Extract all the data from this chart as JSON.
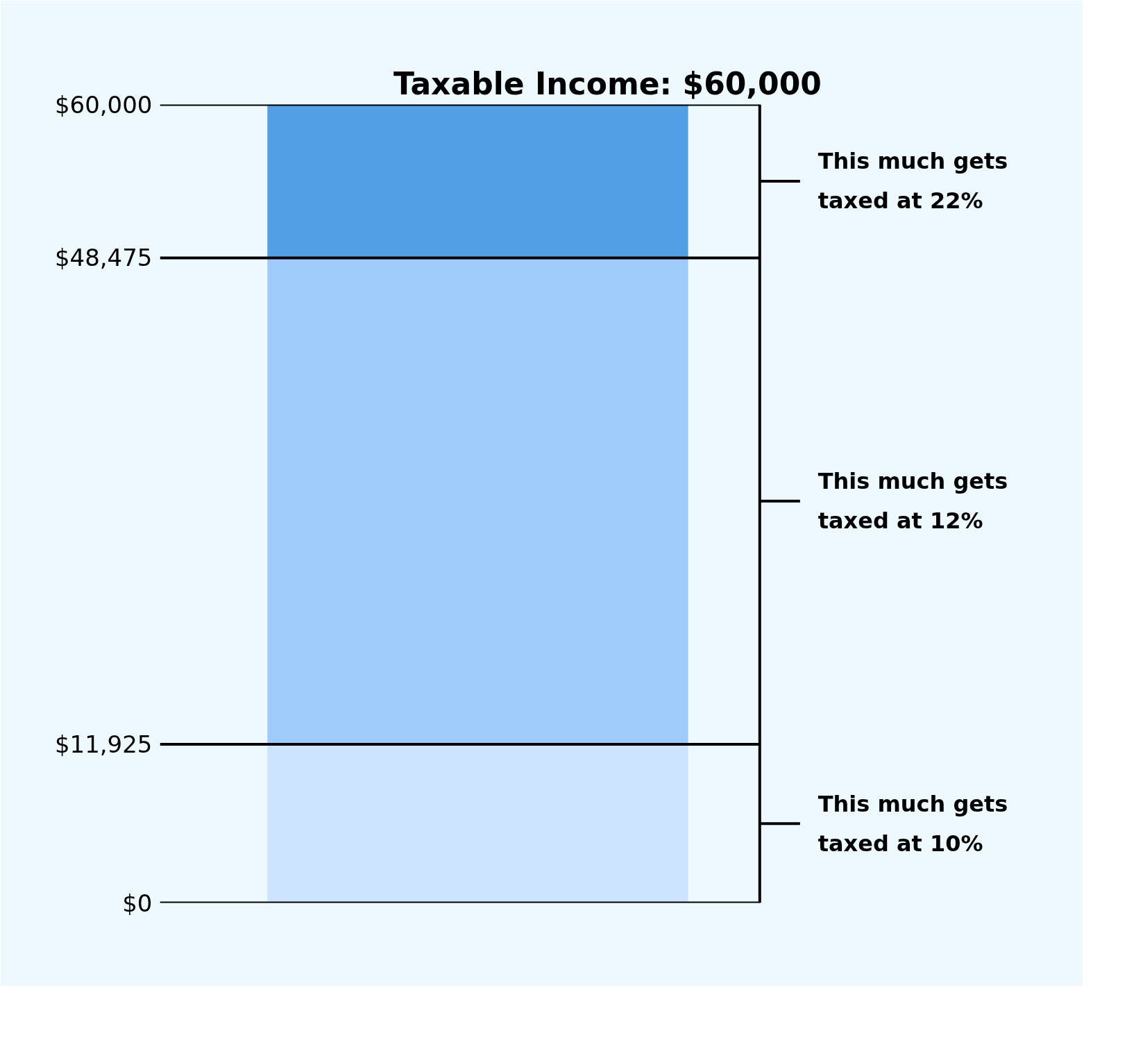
{
  "chart_data": {
    "type": "bar",
    "stacked": true,
    "title": "Taxable Income: $60,000",
    "categories": [
      null
    ],
    "series": [
      {
        "name": "This much gets taxed at 10%",
        "color": "#cce4fd",
        "values": [
          11925
        ]
      },
      {
        "name": "This much gets taxed at 12%",
        "color": "#9ecbfa",
        "values": [
          36550
        ]
      },
      {
        "name": "This much gets taxed at 22%",
        "color": "#539fe3",
        "values": [
          11525
        ]
      }
    ],
    "ylim": [
      0,
      60000
    ],
    "yticks": [
      {
        "value": 0,
        "label": "$0"
      },
      {
        "value": 11925,
        "label": "$11,925"
      },
      {
        "value": 48475,
        "label": "$48,475"
      },
      {
        "value": 60000,
        "label": "$60,000"
      }
    ],
    "grid": "y"
  }
}
